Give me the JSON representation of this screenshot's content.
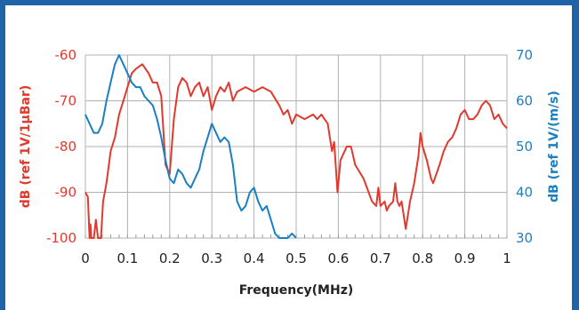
{
  "chart_data": {
    "type": "line",
    "xlabel": "Frequency(MHz)",
    "ylabel_left": "dB (ref  1V/1μBar)",
    "ylabel_right": "dB (ref 1V/(m/s)",
    "xlim": [
      0,
      1
    ],
    "ylim_left": [
      -100,
      -60
    ],
    "ylim_right": [
      30,
      70
    ],
    "x_ticks": [
      "0",
      "0.1",
      "0.2",
      "0.3",
      "0.4",
      "0.5",
      "0.6",
      "0.7",
      "0.8",
      "0.9",
      "1"
    ],
    "y_left_ticks": [
      "-60",
      "-70",
      "-80",
      "-90",
      "-100"
    ],
    "y_right_ticks": [
      "70",
      "60",
      "50",
      "40",
      "30"
    ],
    "grid": true,
    "colors": {
      "left_axis": "#e03a2e",
      "right_axis": "#1b7fc4",
      "frame": "#1f63a8",
      "grid": "#b0b0b0"
    },
    "series": [
      {
        "axis": "left",
        "color": "#e03a2e",
        "points": [
          [
            0.0,
            -90
          ],
          [
            0.006,
            -91
          ],
          [
            0.01,
            -100
          ],
          [
            0.012,
            -97
          ],
          [
            0.014,
            -100
          ],
          [
            0.02,
            -100
          ],
          [
            0.025,
            -96
          ],
          [
            0.03,
            -100
          ],
          [
            0.037,
            -100
          ],
          [
            0.042,
            -92
          ],
          [
            0.05,
            -88
          ],
          [
            0.06,
            -81
          ],
          [
            0.07,
            -78
          ],
          [
            0.08,
            -73
          ],
          [
            0.09,
            -70
          ],
          [
            0.1,
            -67
          ],
          [
            0.11,
            -64
          ],
          [
            0.12,
            -63
          ],
          [
            0.135,
            -62
          ],
          [
            0.15,
            -64
          ],
          [
            0.16,
            -66
          ],
          [
            0.17,
            -66
          ],
          [
            0.18,
            -69
          ],
          [
            0.19,
            -84
          ],
          [
            0.2,
            -86
          ],
          [
            0.21,
            -74
          ],
          [
            0.22,
            -67
          ],
          [
            0.23,
            -65
          ],
          [
            0.24,
            -66
          ],
          [
            0.25,
            -69
          ],
          [
            0.26,
            -67
          ],
          [
            0.27,
            -66
          ],
          [
            0.28,
            -69
          ],
          [
            0.29,
            -67
          ],
          [
            0.3,
            -72
          ],
          [
            0.31,
            -69
          ],
          [
            0.32,
            -67
          ],
          [
            0.33,
            -68
          ],
          [
            0.34,
            -66
          ],
          [
            0.35,
            -70
          ],
          [
            0.36,
            -68
          ],
          [
            0.38,
            -67
          ],
          [
            0.4,
            -68
          ],
          [
            0.42,
            -67
          ],
          [
            0.44,
            -68
          ],
          [
            0.46,
            -71
          ],
          [
            0.47,
            -73
          ],
          [
            0.48,
            -72
          ],
          [
            0.49,
            -75
          ],
          [
            0.5,
            -73
          ],
          [
            0.52,
            -74
          ],
          [
            0.54,
            -73
          ],
          [
            0.55,
            -74
          ],
          [
            0.56,
            -73
          ],
          [
            0.575,
            -75
          ],
          [
            0.585,
            -81
          ],
          [
            0.59,
            -79
          ],
          [
            0.598,
            -90
          ],
          [
            0.605,
            -83
          ],
          [
            0.62,
            -80
          ],
          [
            0.63,
            -80
          ],
          [
            0.64,
            -84
          ],
          [
            0.66,
            -87
          ],
          [
            0.68,
            -92
          ],
          [
            0.69,
            -93
          ],
          [
            0.695,
            -89
          ],
          [
            0.7,
            -93
          ],
          [
            0.71,
            -92
          ],
          [
            0.715,
            -94
          ],
          [
            0.72,
            -93
          ],
          [
            0.73,
            -92
          ],
          [
            0.735,
            -88
          ],
          [
            0.74,
            -92
          ],
          [
            0.745,
            -93
          ],
          [
            0.75,
            -92
          ],
          [
            0.755,
            -95
          ],
          [
            0.76,
            -98
          ],
          [
            0.77,
            -92
          ],
          [
            0.78,
            -88
          ],
          [
            0.79,
            -82
          ],
          [
            0.795,
            -77
          ],
          [
            0.8,
            -80
          ],
          [
            0.81,
            -83
          ],
          [
            0.82,
            -87
          ],
          [
            0.825,
            -88
          ],
          [
            0.84,
            -84
          ],
          [
            0.85,
            -81
          ],
          [
            0.86,
            -79
          ],
          [
            0.87,
            -78
          ],
          [
            0.88,
            -76
          ],
          [
            0.89,
            -73
          ],
          [
            0.9,
            -72
          ],
          [
            0.91,
            -74
          ],
          [
            0.92,
            -74
          ],
          [
            0.93,
            -73
          ],
          [
            0.94,
            -71
          ],
          [
            0.95,
            -70
          ],
          [
            0.96,
            -71
          ],
          [
            0.97,
            -74
          ],
          [
            0.98,
            -73
          ],
          [
            0.99,
            -75
          ],
          [
            1.0,
            -76
          ]
        ]
      },
      {
        "axis": "right",
        "color": "#1b7fc4",
        "points": [
          [
            0.0,
            57
          ],
          [
            0.01,
            55
          ],
          [
            0.02,
            53
          ],
          [
            0.03,
            53
          ],
          [
            0.04,
            55
          ],
          [
            0.05,
            60
          ],
          [
            0.06,
            64
          ],
          [
            0.07,
            68
          ],
          [
            0.08,
            70
          ],
          [
            0.09,
            68
          ],
          [
            0.1,
            66
          ],
          [
            0.11,
            64
          ],
          [
            0.12,
            63
          ],
          [
            0.13,
            63
          ],
          [
            0.14,
            61
          ],
          [
            0.15,
            60
          ],
          [
            0.16,
            59
          ],
          [
            0.17,
            56
          ],
          [
            0.18,
            52
          ],
          [
            0.19,
            47
          ],
          [
            0.2,
            43
          ],
          [
            0.21,
            42
          ],
          [
            0.22,
            45
          ],
          [
            0.23,
            44
          ],
          [
            0.24,
            42
          ],
          [
            0.25,
            41
          ],
          [
            0.26,
            43
          ],
          [
            0.27,
            45
          ],
          [
            0.28,
            49
          ],
          [
            0.29,
            52
          ],
          [
            0.3,
            55
          ],
          [
            0.31,
            53
          ],
          [
            0.32,
            51
          ],
          [
            0.33,
            52
          ],
          [
            0.34,
            51
          ],
          [
            0.35,
            46
          ],
          [
            0.36,
            38
          ],
          [
            0.37,
            36
          ],
          [
            0.38,
            37
          ],
          [
            0.39,
            40
          ],
          [
            0.4,
            41
          ],
          [
            0.41,
            38
          ],
          [
            0.42,
            36
          ],
          [
            0.43,
            37
          ],
          [
            0.44,
            34
          ],
          [
            0.45,
            31
          ],
          [
            0.46,
            30
          ],
          [
            0.47,
            30
          ],
          [
            0.48,
            30
          ],
          [
            0.49,
            31
          ],
          [
            0.5,
            30
          ]
        ]
      }
    ]
  }
}
